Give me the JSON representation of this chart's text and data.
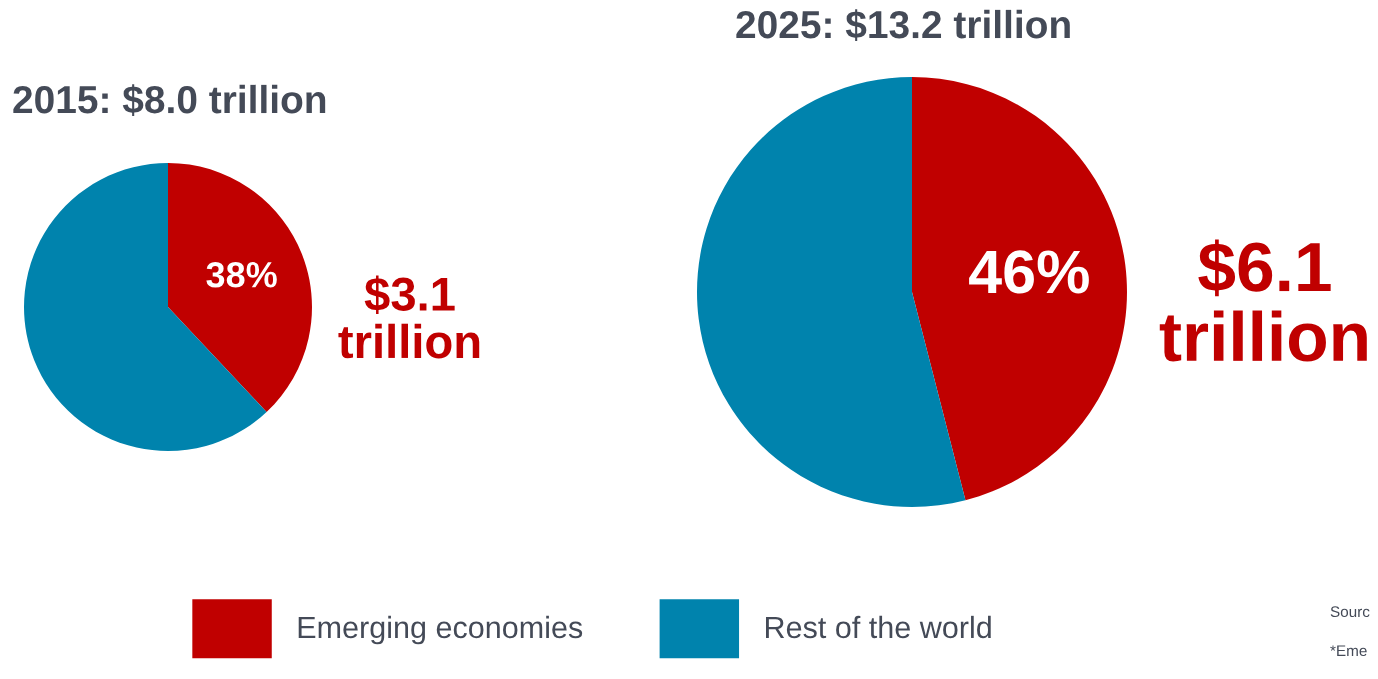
{
  "chart_data": [
    {
      "type": "pie",
      "title": "2015: $8.0 trillion",
      "categories": [
        "Emerging economies",
        "Rest of the world"
      ],
      "values": [
        38,
        62
      ],
      "colors": [
        "#c00000",
        "#0083ad"
      ],
      "value_labels": [
        "38%",
        null
      ],
      "annotations": [
        "$3.1\ntrillion"
      ],
      "legend": "bottom"
    },
    {
      "type": "pie",
      "title": "2025: $13.2 trillion",
      "categories": [
        null,
        null
      ],
      "values": [
        46,
        54
      ],
      "colors": [
        "#c00000",
        "#0083ad"
      ],
      "value_labels": [
        "46%",
        null
      ],
      "annotations": [
        "$6.1\ntrillion",
        "Sourc",
        "*Eme"
      ]
    }
  ]
}
